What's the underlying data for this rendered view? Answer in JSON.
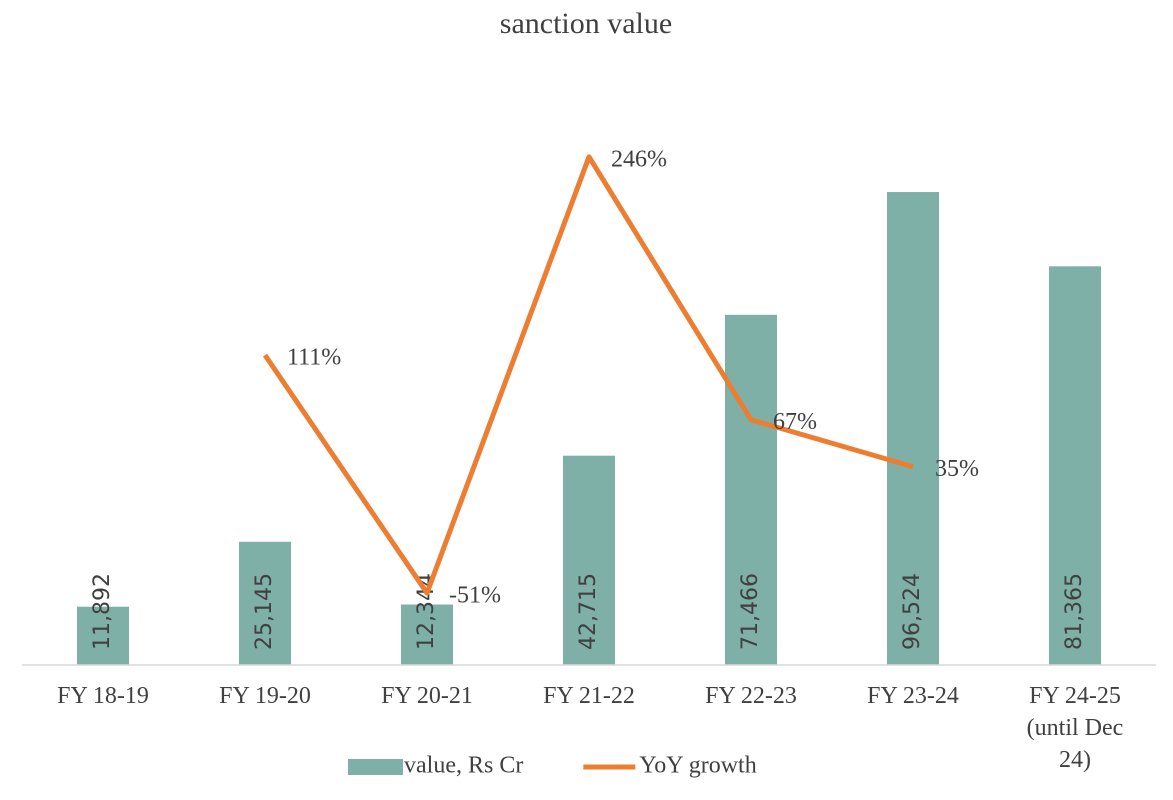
{
  "chart_data": {
    "type": "bar+line",
    "title": "sanction value",
    "categories": [
      "FY 18-19",
      "FY 19-20",
      "FY 20-21",
      "FY 21-22",
      "FY 22-23",
      "FY 23-24",
      "FY 24-25\n(until Dec\n24)"
    ],
    "series": [
      {
        "name": "value, Rs Cr",
        "type": "bar",
        "color": "#7eb0a8",
        "values": [
          11892,
          25145,
          12344,
          42715,
          71466,
          96524,
          81365
        ],
        "value_labels": [
          "11,892",
          "25,145",
          "12,344",
          "42,715",
          "71,466",
          "96,524",
          "81,365"
        ]
      },
      {
        "name": "YoY growth",
        "type": "line",
        "axis": "y2",
        "color": "#ed7d31",
        "values": [
          null,
          111,
          -51,
          246,
          67,
          35,
          null
        ],
        "value_labels": [
          null,
          "111%",
          "-51%",
          "246%",
          "67%",
          "35%",
          null
        ]
      }
    ],
    "ylim": [
      0,
      110000
    ],
    "y2lim": [
      -100,
      267
    ],
    "legend": "bottom"
  }
}
